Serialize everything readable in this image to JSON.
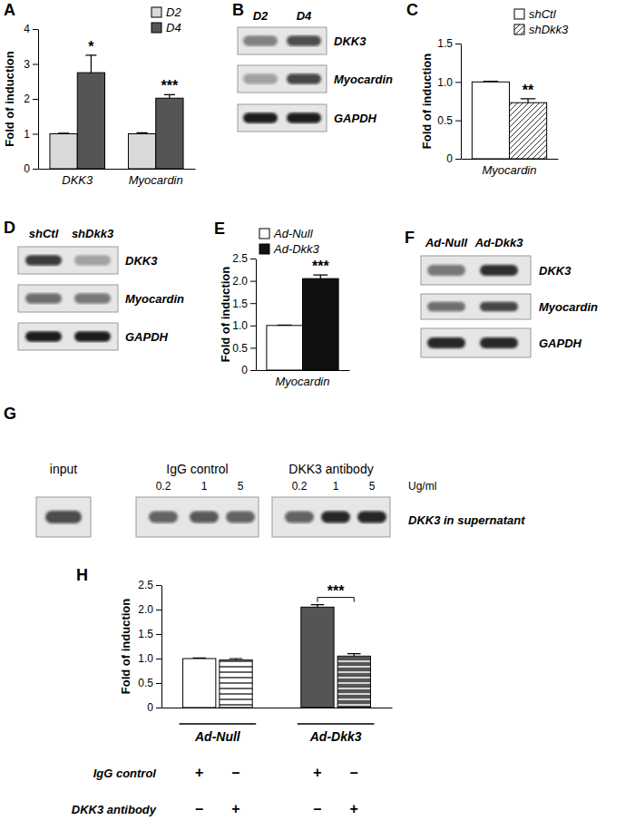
{
  "chart_data": [
    {
      "panel": "A",
      "type": "bar",
      "ylabel": "Fold of induction",
      "categories": [
        "DKK3",
        "Myocardin"
      ],
      "series": [
        {
          "name": "D2",
          "color": "#d9d9d9",
          "values": [
            1,
            1
          ],
          "errors": [
            0.02,
            0.03
          ]
        },
        {
          "name": "D4",
          "color": "#555555",
          "values": [
            2.75,
            2.02
          ],
          "errors": [
            0.5,
            0.1
          ]
        }
      ],
      "ylim": [
        0,
        4
      ],
      "yticks": [
        0,
        1,
        2,
        3,
        4
      ],
      "legend": "top-right",
      "annotations": [
        {
          "text": "*",
          "category": "DKK3",
          "series": "D4"
        },
        {
          "text": "***",
          "category": "Myocardin",
          "series": "D4"
        }
      ]
    },
    {
      "panel": "B",
      "type": "blot",
      "lanes": [
        "D2",
        "D4"
      ],
      "rows": [
        {
          "name": "DKK3",
          "intensity": [
            0.45,
            0.7
          ]
        },
        {
          "name": "Myocardin",
          "intensity": [
            0.3,
            0.75
          ]
        },
        {
          "name": "GAPDH",
          "intensity": [
            0.95,
            0.95
          ]
        }
      ]
    },
    {
      "panel": "C",
      "type": "bar",
      "ylabel": "Fold of induction",
      "categories": [
        "Myocardin"
      ],
      "series": [
        {
          "name": "shCtl",
          "color": "#ffffff",
          "values": [
            1
          ],
          "errors": [
            0.01
          ]
        },
        {
          "name": "shDkk3",
          "color": "#ffffff",
          "marker": "diagonal",
          "values": [
            0.73
          ],
          "errors": [
            0.05
          ]
        }
      ],
      "ylim": [
        0,
        1.5
      ],
      "yticks": [
        0,
        0.5,
        {
          "value": 1,
          "label": "1.0"
        },
        1.5
      ],
      "legend": "top-right",
      "annotations": [
        {
          "text": "**",
          "category": "Myocardin",
          "series": "shDkk3"
        }
      ]
    },
    {
      "panel": "D",
      "type": "blot",
      "lanes": [
        "shCtl",
        "shDkk3"
      ],
      "rows": [
        {
          "name": "DKK3",
          "intensity": [
            0.8,
            0.3
          ]
        },
        {
          "name": "Myocardin",
          "intensity": [
            0.55,
            0.5
          ]
        },
        {
          "name": "GAPDH",
          "intensity": [
            0.95,
            0.95
          ]
        }
      ]
    },
    {
      "panel": "E",
      "type": "bar",
      "ylabel": "Fold of induction",
      "categories": [
        "Myocardin"
      ],
      "series": [
        {
          "name": "Ad-Null",
          "color": "#ffffff",
          "values": [
            1
          ],
          "errors": [
            0.01
          ]
        },
        {
          "name": "Ad-Dkk3",
          "color": "#111111",
          "values": [
            2.05
          ],
          "errors": [
            0.08
          ]
        }
      ],
      "ylim": [
        0,
        2.5
      ],
      "yticks": [
        0,
        0.5,
        {
          "value": 1,
          "label": "1.0"
        },
        1.5,
        {
          "value": 2,
          "label": "2.0"
        },
        2.5
      ],
      "legend": "top-left",
      "annotations": [
        {
          "text": "***",
          "category": "Myocardin",
          "series": "Ad-Dkk3"
        }
      ]
    },
    {
      "panel": "F",
      "type": "blot",
      "lanes": [
        "Ad-Null",
        "Ad-Dkk3"
      ],
      "rows": [
        {
          "name": "DKK3",
          "intensity": [
            0.5,
            0.85
          ]
        },
        {
          "name": "Myocardin",
          "intensity": [
            0.55,
            0.75
          ]
        },
        {
          "name": "GAPDH",
          "intensity": [
            0.9,
            0.9
          ]
        }
      ]
    },
    {
      "panel": "G",
      "type": "blot",
      "input_label": "input",
      "input_intensity": 0.7,
      "groups": [
        {
          "name": "IgG control",
          "lanes": [
            0.2,
            1,
            5
          ],
          "intensity": [
            0.6,
            0.65,
            0.6
          ]
        },
        {
          "name": "DKK3 antibody",
          "lanes": [
            0.2,
            1,
            5
          ],
          "intensity": [
            0.6,
            0.9,
            0.9
          ]
        }
      ],
      "unit": "Ug/ml",
      "row": "DKK3 in supernatant"
    },
    {
      "panel": "H",
      "type": "bar",
      "ylabel": "Fold of induction",
      "categories": [
        "Ad-Null",
        "Ad-Dkk3"
      ],
      "series": [
        {
          "name": "IgG control",
          "colors": [
            "#ffffff",
            "#555555"
          ],
          "values": [
            1,
            2.05
          ],
          "errors": [
            0.01,
            0.05
          ],
          "conditions": [
            "+",
            "–",
            "+",
            "–"
          ]
        },
        {
          "name": "DKK3 antibody",
          "colors": [
            "#ffffff",
            "#555555"
          ],
          "marker": "horizontal",
          "values": [
            0.97,
            1.05
          ],
          "errors": [
            0.03,
            0.05
          ],
          "conditions": [
            "–",
            "+",
            "–",
            "+"
          ]
        }
      ],
      "ylim": [
        0,
        2.5
      ],
      "yticks": [
        0,
        0.5,
        {
          "value": 1,
          "label": "1.0"
        },
        1.5,
        {
          "value": 2,
          "label": "2.0"
        },
        2.5
      ],
      "annotations": [
        {
          "text": "***",
          "category": "Ad-Dkk3"
        }
      ]
    }
  ]
}
